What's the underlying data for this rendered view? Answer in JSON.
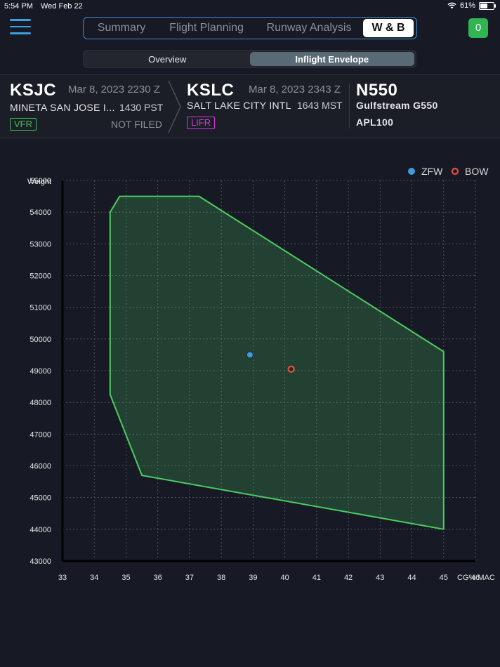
{
  "status": {
    "time": "5:54 PM",
    "date": "Wed Feb 22",
    "battery": "61%",
    "battery_level": 0.61
  },
  "header": {
    "tabs": [
      {
        "label": "Summary",
        "active": false
      },
      {
        "label": "Flight Planning",
        "active": false
      },
      {
        "label": "Runway Analysis",
        "active": false
      },
      {
        "label": "W & B",
        "active": true
      }
    ],
    "badge_count": "0"
  },
  "subtabs": [
    {
      "label": "Overview",
      "active": false
    },
    {
      "label": "Inflight Envelope",
      "active": true
    }
  ],
  "departure": {
    "code": "KSJC",
    "datetime": "Mar 8, 2023 2230 Z",
    "name": "MINETA SAN JOSE I...",
    "local_time": "1430 PST",
    "wx": "VFR",
    "wx_color": "#3fbf5b",
    "filed": "NOT FILED"
  },
  "arrival": {
    "code": "KSLC",
    "datetime": "Mar 8, 2023 2343 Z",
    "name": "SALT LAKE CITY INTL",
    "local_time": "1643 MST",
    "wx": "LIFR",
    "wx_color": "#d43ad8"
  },
  "aircraft": {
    "tail": "N550",
    "type": "Gulfstream G550",
    "profile": "APL100"
  },
  "chart_data": {
    "type": "scatter",
    "xlabel": "CG% MAC",
    "ylabel": "Weight",
    "xlim": [
      33,
      46
    ],
    "ylim": [
      43000,
      55000
    ],
    "x_ticks": [
      33,
      34,
      35,
      36,
      37,
      38,
      39,
      40,
      41,
      42,
      43,
      44,
      45,
      46
    ],
    "y_ticks": [
      43000,
      44000,
      45000,
      46000,
      47000,
      48000,
      49000,
      50000,
      51000,
      52000,
      53000,
      54000,
      55000
    ],
    "grid": true,
    "legend_position": "top-right",
    "envelope": [
      [
        34.8,
        54500
      ],
      [
        37.3,
        54500
      ],
      [
        45.0,
        49600
      ],
      [
        45.0,
        44000
      ],
      [
        35.5,
        45700
      ],
      [
        34.5,
        48250
      ],
      [
        34.5,
        54000
      ]
    ],
    "envelope_color": "#4ccb62",
    "series": [
      {
        "name": "ZFW",
        "x": 38.9,
        "y": 49500,
        "color": "#3d9be0",
        "style": "filled"
      },
      {
        "name": "BOW",
        "x": 40.2,
        "y": 49050,
        "color": "#e4503c",
        "style": "ring"
      }
    ]
  }
}
